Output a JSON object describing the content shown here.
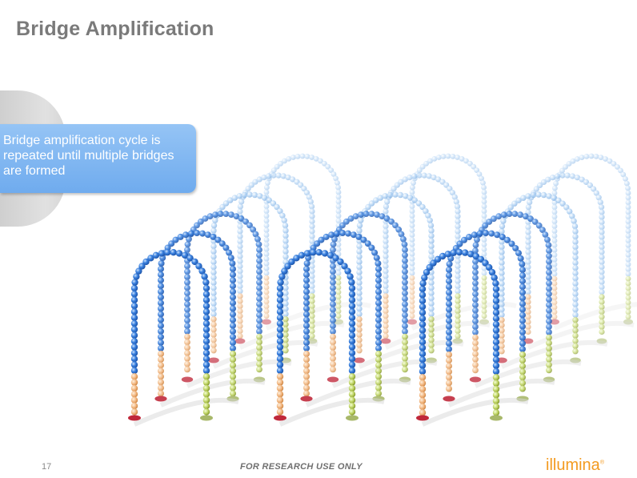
{
  "slide": {
    "title": "Bridge Amplification",
    "callout_text": "Bridge amplification cycle is repeated until multiple bridges are formed"
  },
  "footer": {
    "page_number": "17",
    "note": "FOR RESEARCH USE ONLY",
    "logo_text": "illumina",
    "logo_mark": "®"
  },
  "colors": {
    "title": "#7a7a7a",
    "callout": "#7fb6f1",
    "bead_front": "#2e74d6",
    "bead_back": "#9dc7f2",
    "tail_orange": "#f0b27a",
    "tail_green": "#b9cf5c",
    "base_red": "#c0283a",
    "base_green": "#a8b86a",
    "logo": "#f39a1f"
  }
}
